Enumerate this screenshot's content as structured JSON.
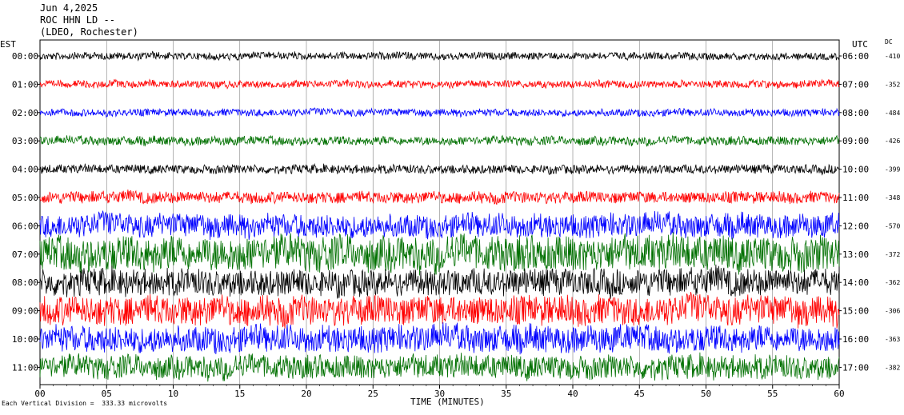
{
  "header": {
    "date": "Jun 4,2025",
    "station": "ROC HHN LD --",
    "network": "(LDEO, Rochester)"
  },
  "left_axis_title": "EST",
  "right_axis_title": "UTC",
  "dc_title": "DC",
  "scale_note": "Each Vertical Division =  333.33 microvolts",
  "chart_data": {
    "type": "line",
    "title": "ROC HHN LD --",
    "xlabel": "TIME (MINUTES)",
    "ylabel": "",
    "xlim": [
      0,
      60
    ],
    "x_ticks": [
      "00",
      "05",
      "10",
      "15",
      "20",
      "25",
      "30",
      "35",
      "40",
      "45",
      "50",
      "55",
      "60"
    ],
    "grid": true,
    "colors": [
      "#000000",
      "#ff0000",
      "#0000ff",
      "#007000"
    ],
    "rows": [
      {
        "est": "00:00",
        "utc": "06:00",
        "dc": "-410",
        "color": "#000000",
        "amplitude": 0.25
      },
      {
        "est": "01:00",
        "utc": "07:00",
        "dc": "-352",
        "color": "#ff0000",
        "amplitude": 0.25
      },
      {
        "est": "02:00",
        "utc": "08:00",
        "dc": "-484",
        "color": "#0000ff",
        "amplitude": 0.25
      },
      {
        "est": "03:00",
        "utc": "09:00",
        "dc": "-426",
        "color": "#007000",
        "amplitude": 0.3
      },
      {
        "est": "04:00",
        "utc": "10:00",
        "dc": "-399",
        "color": "#000000",
        "amplitude": 0.3
      },
      {
        "est": "05:00",
        "utc": "11:00",
        "dc": "-348",
        "color": "#ff0000",
        "amplitude": 0.4
      },
      {
        "est": "06:00",
        "utc": "12:00",
        "dc": "-570",
        "color": "#0000ff",
        "amplitude": 0.8
      },
      {
        "est": "07:00",
        "utc": "13:00",
        "dc": "-372",
        "color": "#007000",
        "amplitude": 1.2
      },
      {
        "est": "08:00",
        "utc": "14:00",
        "dc": "-362",
        "color": "#000000",
        "amplitude": 0.9
      },
      {
        "est": "09:00",
        "utc": "15:00",
        "dc": "-306",
        "color": "#ff0000",
        "amplitude": 1.0
      },
      {
        "est": "10:00",
        "utc": "16:00",
        "dc": "-363",
        "color": "#0000ff",
        "amplitude": 0.9
      },
      {
        "est": "11:00",
        "utc": "17:00",
        "dc": "-382",
        "color": "#007000",
        "amplitude": 0.8
      }
    ]
  }
}
